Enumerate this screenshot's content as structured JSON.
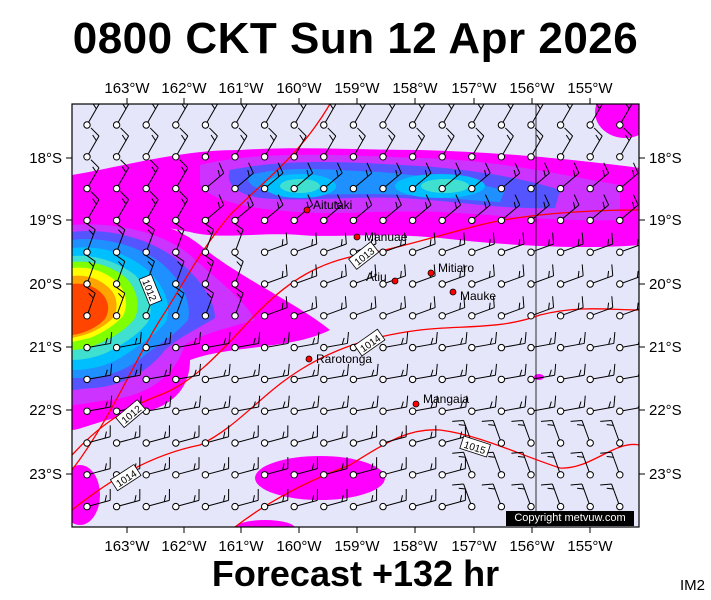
{
  "title": "0800 CKT Sun 12 Apr 2026",
  "footer": "Forecast +132 hr",
  "code": "IM2",
  "copyright": "Copyright metvuw.com",
  "map": {
    "longitude_ticks": [
      "163°W",
      "162°W",
      "161°W",
      "160°W",
      "159°W",
      "158°W",
      "157°W",
      "156°W",
      "155°W"
    ],
    "latitude_ticks": [
      "18°S",
      "19°S",
      "20°S",
      "21°S",
      "22°S",
      "23°S"
    ],
    "colors": {
      "background": "#e6e6fa",
      "isobar": "#ff0000",
      "rain_light": "#ff00ff",
      "rain_heavy": "#ff4500"
    },
    "places": [
      {
        "name": "Aitutaki"
      },
      {
        "name": "Manuae"
      },
      {
        "name": "Mitiaro"
      },
      {
        "name": "Atiu"
      },
      {
        "name": "Mauke"
      },
      {
        "name": "Rarotonga"
      },
      {
        "name": "Mangaia"
      }
    ],
    "isobars": [
      {
        "label": "1012"
      },
      {
        "label": "1012"
      },
      {
        "label": "1013"
      },
      {
        "label": "1014"
      },
      {
        "label": "1014"
      },
      {
        "label": "1015"
      }
    ]
  }
}
